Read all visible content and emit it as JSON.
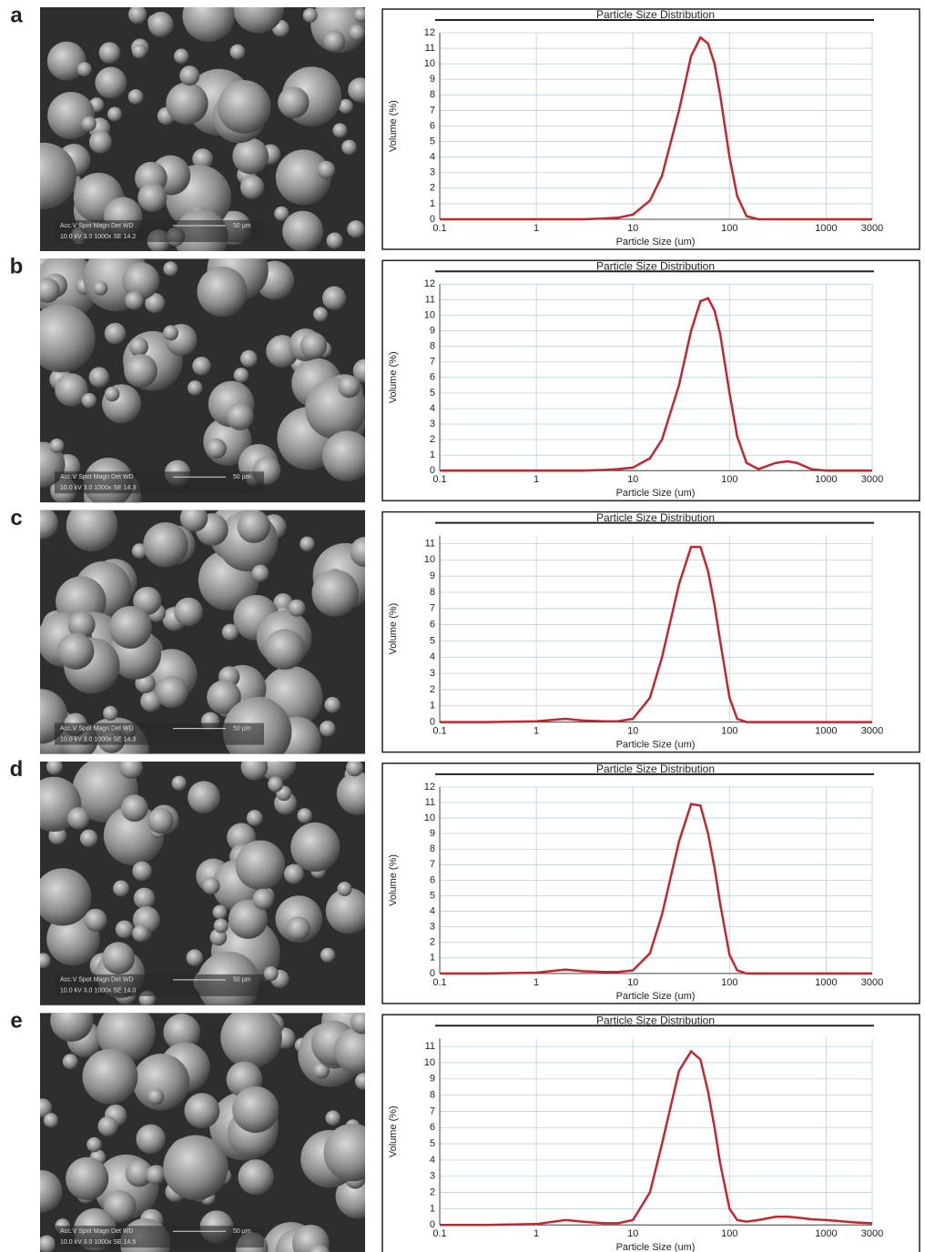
{
  "panels": [
    {
      "label": "a",
      "sem_header": "Acc.V  Spot Magn   Det  WD",
      "sem_values": "10.0 kV 3.0  1000x   SE  14.2",
      "scale": "50 µm"
    },
    {
      "label": "b",
      "sem_header": "Acc.V  Spot Magn   Det  WD",
      "sem_values": "10.0 kV 3.0  1000x   SE  14.3",
      "scale": "50 µm"
    },
    {
      "label": "c",
      "sem_header": "Acc.V  Spot Magn   Det  WD",
      "sem_values": "10.0 kV 3.0  1000x   SE  14.3",
      "scale": "50 µm"
    },
    {
      "label": "d",
      "sem_header": "Acc.V  Spot Magn   Det  WD",
      "sem_values": "10.0 kV 3.0  1000x   SE  14.0",
      "scale": "50 µm"
    },
    {
      "label": "e",
      "sem_header": "Acc.V  Spot Magn   Det  WD",
      "sem_values": "10.0 kV 3.0  1000x   SE  14.5",
      "scale": "50 µm"
    }
  ],
  "chart_data": [
    {
      "type": "line",
      "title": "Particle Size Distribution",
      "x_label": "Particle Size (um)",
      "y_label": "Volume (%)",
      "xscale": "log",
      "grid": true,
      "color": "#c0282d",
      "x": [
        0.1,
        0.3,
        1,
        2,
        3,
        5,
        7,
        10,
        15,
        20,
        30,
        40,
        50,
        60,
        70,
        80,
        100,
        120,
        150,
        200,
        300,
        400,
        500,
        700,
        1000,
        2000,
        3000
      ],
      "values": [
        0,
        0,
        0,
        0,
        0,
        0.05,
        0.1,
        0.3,
        1.2,
        2.8,
        7,
        10.5,
        11.7,
        11.3,
        10,
        8,
        4,
        1.5,
        0.2,
        0,
        0,
        0,
        0,
        0,
        0,
        0,
        0
      ],
      "xlim": [
        0.1,
        3000
      ],
      "xticks": [
        0.1,
        1,
        10,
        100,
        1000,
        3000
      ],
      "ylim": [
        0,
        12
      ],
      "yticks": [
        0,
        1,
        2,
        3,
        4,
        5,
        6,
        7,
        8,
        9,
        10,
        11,
        12
      ]
    },
    {
      "type": "line",
      "title": "Particle Size Distribution",
      "x_label": "Particle Size (um)",
      "y_label": "Volume (%)",
      "xscale": "log",
      "grid": true,
      "color": "#c0282d",
      "x": [
        0.1,
        0.3,
        1,
        2,
        3,
        5,
        7,
        10,
        15,
        20,
        30,
        40,
        50,
        60,
        70,
        80,
        100,
        120,
        150,
        200,
        300,
        400,
        500,
        700,
        1000,
        2000,
        3000
      ],
      "values": [
        0,
        0,
        0,
        0,
        0,
        0.05,
        0.1,
        0.2,
        0.8,
        2,
        5.5,
        9,
        10.9,
        11.1,
        10.3,
        8.8,
        5,
        2.2,
        0.5,
        0.1,
        0.5,
        0.6,
        0.5,
        0.1,
        0,
        0,
        0
      ],
      "xlim": [
        0.1,
        3000
      ],
      "xticks": [
        0.1,
        1,
        10,
        100,
        1000,
        3000
      ],
      "ylim": [
        0,
        12
      ],
      "yticks": [
        0,
        1,
        2,
        3,
        4,
        5,
        6,
        7,
        8,
        9,
        10,
        11,
        12
      ]
    },
    {
      "type": "line",
      "title": "Particle Size Distribution",
      "x_label": "Particle Size (um)",
      "y_label": "Volume (%)",
      "xscale": "log",
      "grid": true,
      "color": "#c0282d",
      "x": [
        0.1,
        0.3,
        1,
        2,
        3,
        5,
        7,
        10,
        15,
        20,
        30,
        40,
        50,
        60,
        70,
        80,
        100,
        120,
        150,
        200,
        300,
        400,
        500,
        700,
        1000,
        2000,
        3000
      ],
      "values": [
        0,
        0,
        0.05,
        0.2,
        0.1,
        0.05,
        0.05,
        0.2,
        1.5,
        4,
        8.5,
        10.8,
        10.8,
        9.3,
        7.2,
        5,
        1.5,
        0.2,
        0,
        0,
        0,
        0,
        0,
        0,
        0,
        0,
        0
      ],
      "xlim": [
        0.1,
        3000
      ],
      "xticks": [
        0.1,
        1,
        10,
        100,
        1000,
        3000
      ],
      "ylim": [
        0,
        11.5
      ],
      "yticks": [
        0,
        1,
        2,
        3,
        4,
        5,
        6,
        7,
        8,
        9,
        10,
        11
      ]
    },
    {
      "type": "line",
      "title": "Particle Size Distribution",
      "x_label": "Particle Size (um)",
      "y_label": "Volume (%)",
      "xscale": "log",
      "grid": true,
      "color": "#c0282d",
      "x": [
        0.1,
        0.3,
        1,
        2,
        3,
        5,
        7,
        10,
        15,
        20,
        30,
        40,
        50,
        60,
        70,
        80,
        100,
        120,
        150,
        200,
        300,
        400,
        500,
        700,
        1000,
        2000,
        3000
      ],
      "values": [
        0,
        0,
        0.05,
        0.25,
        0.15,
        0.1,
        0.1,
        0.2,
        1.3,
        3.8,
        8.5,
        10.9,
        10.8,
        9,
        6.8,
        4.5,
        1.2,
        0.2,
        0,
        0,
        0,
        0,
        0,
        0,
        0,
        0,
        0
      ],
      "xlim": [
        0.1,
        3000
      ],
      "xticks": [
        0.1,
        1,
        10,
        100,
        1000,
        3000
      ],
      "ylim": [
        0,
        12
      ],
      "yticks": [
        0,
        1,
        2,
        3,
        4,
        5,
        6,
        7,
        8,
        9,
        10,
        11,
        12
      ]
    },
    {
      "type": "line",
      "title": "Particle Size Distribution",
      "x_label": "Particle Size (um)",
      "y_label": "Volume (%)",
      "xscale": "log",
      "grid": true,
      "color": "#c0282d",
      "x": [
        0.1,
        0.3,
        1,
        2,
        3,
        5,
        7,
        10,
        15,
        20,
        30,
        40,
        50,
        60,
        70,
        80,
        100,
        120,
        150,
        200,
        300,
        400,
        500,
        700,
        1000,
        2000,
        3000
      ],
      "values": [
        0,
        0,
        0.05,
        0.3,
        0.2,
        0.1,
        0.1,
        0.3,
        2,
        5,
        9.5,
        10.7,
        10.2,
        8.2,
        6,
        3.8,
        1,
        0.3,
        0.2,
        0.3,
        0.5,
        0.5,
        0.45,
        0.35,
        0.3,
        0.15,
        0.1
      ],
      "xlim": [
        0.1,
        3000
      ],
      "xticks": [
        0.1,
        1,
        10,
        100,
        1000,
        3000
      ],
      "ylim": [
        0,
        11.5
      ],
      "yticks": [
        0,
        1,
        2,
        3,
        4,
        5,
        6,
        7,
        8,
        9,
        10,
        11
      ]
    }
  ]
}
